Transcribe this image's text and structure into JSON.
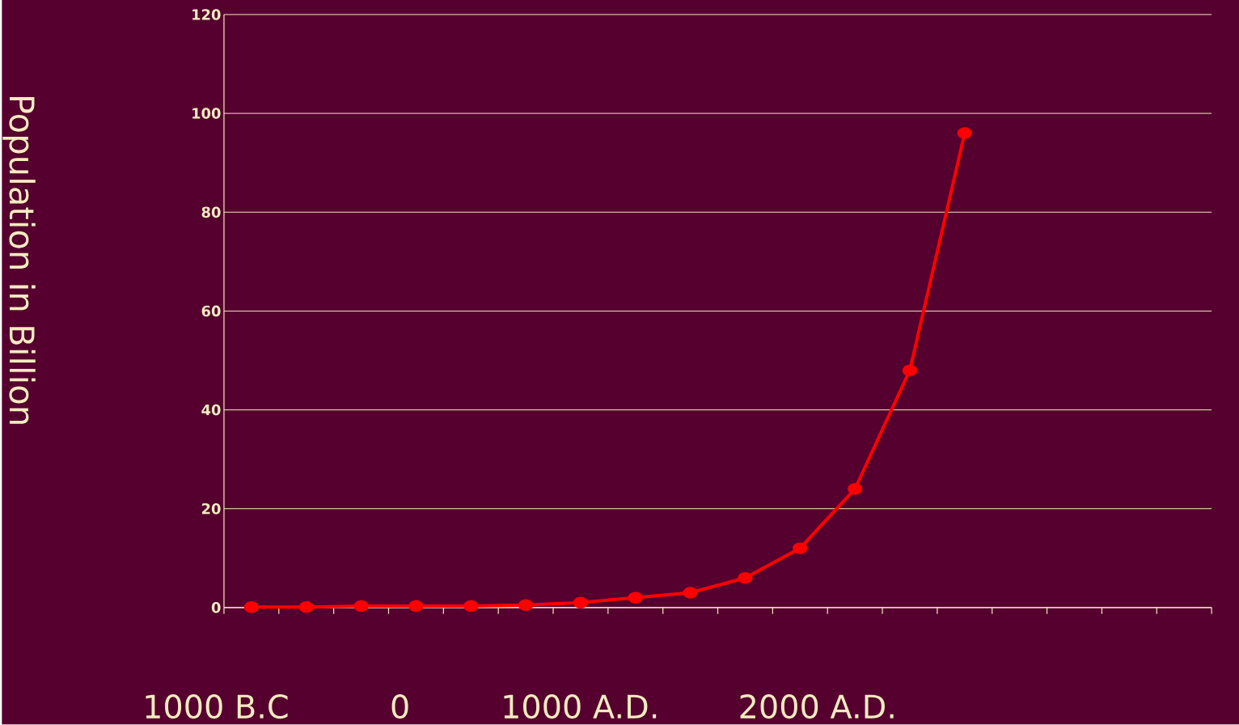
{
  "chart_data": {
    "type": "line",
    "ylabel": "Population in Billion",
    "categories": [
      null,
      null,
      null,
      null,
      null,
      null,
      null,
      null,
      null,
      null,
      null,
      null,
      null,
      null,
      null,
      null,
      null,
      null
    ],
    "series": [
      {
        "color": "#ff0000",
        "values": [
          0.1,
          0.1,
          0.3,
          0.3,
          0.3,
          0.5,
          1,
          2,
          3,
          6,
          12,
          24,
          48,
          96,
          null,
          null,
          null,
          null
        ]
      }
    ],
    "ylim": [
      0,
      120
    ],
    "yticks": [
      0,
      20,
      40,
      60,
      80,
      100,
      120
    ],
    "grid": "y",
    "marker": "circle",
    "line_style": "solid",
    "annotations": [
      "1000 B.C",
      "0",
      "1000 A.D.",
      "2000 A.D."
    ]
  }
}
